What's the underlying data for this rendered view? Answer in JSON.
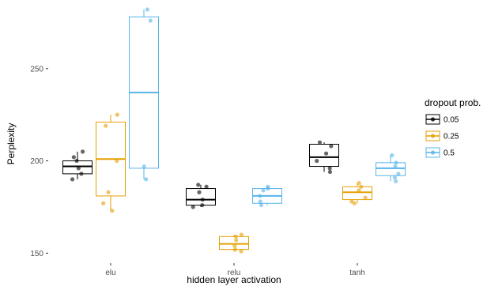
{
  "chart_data": {
    "type": "box",
    "xlabel": "hidden layer activation",
    "ylabel": "Perplexity",
    "categories": [
      "elu",
      "relu",
      "tanh"
    ],
    "y_ticks": [
      150,
      200,
      250
    ],
    "y_tick_labels": [
      "150",
      "200",
      "250"
    ],
    "ylim": [
      145,
      285
    ],
    "grid": false,
    "legend": {
      "title": "dropout prob.",
      "placement": "right",
      "items": [
        {
          "label": "0.05",
          "color": "#000000"
        },
        {
          "label": "0.25",
          "color": "#E69F00"
        },
        {
          "label": "0.5",
          "color": "#56B4E9"
        }
      ]
    },
    "series": [
      {
        "name": "0.05",
        "color": "#000000",
        "boxes": [
          {
            "category": "elu",
            "q1": 193,
            "median": 197,
            "q3": 200,
            "whisker_low": 190,
            "whisker_high": 205,
            "points": [
              190,
              193,
              196,
              200,
              202,
              205
            ]
          },
          {
            "category": "relu",
            "q1": 176,
            "median": 179,
            "q3": 185,
            "whisker_low": 175,
            "whisker_high": 187,
            "points": [
              175,
              176,
              179,
              183,
              186,
              187
            ]
          },
          {
            "category": "tanh",
            "q1": 197,
            "median": 202,
            "q3": 209,
            "whisker_low": 194,
            "whisker_high": 210,
            "points": [
              194,
              196,
              200,
              204,
              208,
              210
            ]
          }
        ]
      },
      {
        "name": "0.25",
        "color": "#E69F00",
        "boxes": [
          {
            "category": "elu",
            "q1": 181,
            "median": 201,
            "q3": 221,
            "whisker_low": 173,
            "whisker_high": 225,
            "points": [
              173,
              177,
              183,
              200,
              219,
              225
            ]
          },
          {
            "category": "relu",
            "q1": 152,
            "median": 155,
            "q3": 159,
            "whisker_low": 151,
            "whisker_high": 160,
            "points": [
              151,
              152,
              154,
              157,
              159,
              160
            ]
          },
          {
            "category": "tanh",
            "q1": 179,
            "median": 183,
            "q3": 186,
            "whisker_low": 177,
            "whisker_high": 188,
            "points": [
              177,
              178,
              180,
              184,
              186,
              188
            ]
          }
        ]
      },
      {
        "name": "0.5",
        "color": "#56B4E9",
        "boxes": [
          {
            "category": "elu",
            "q1": 196,
            "median": 237,
            "q3": 278,
            "whisker_low": 190,
            "whisker_high": 282,
            "points": [
              190,
              197,
              276,
              282
            ]
          },
          {
            "category": "relu",
            "q1": 177,
            "median": 181,
            "q3": 185,
            "whisker_low": 176,
            "whisker_high": 186,
            "points": [
              176,
              178,
              181,
              184,
              185,
              186
            ]
          },
          {
            "category": "tanh",
            "q1": 192,
            "median": 196,
            "q3": 199,
            "whisker_low": 189,
            "whisker_high": 203,
            "points": [
              189,
              191,
              193,
              197,
              199,
              203
            ]
          }
        ]
      }
    ]
  }
}
